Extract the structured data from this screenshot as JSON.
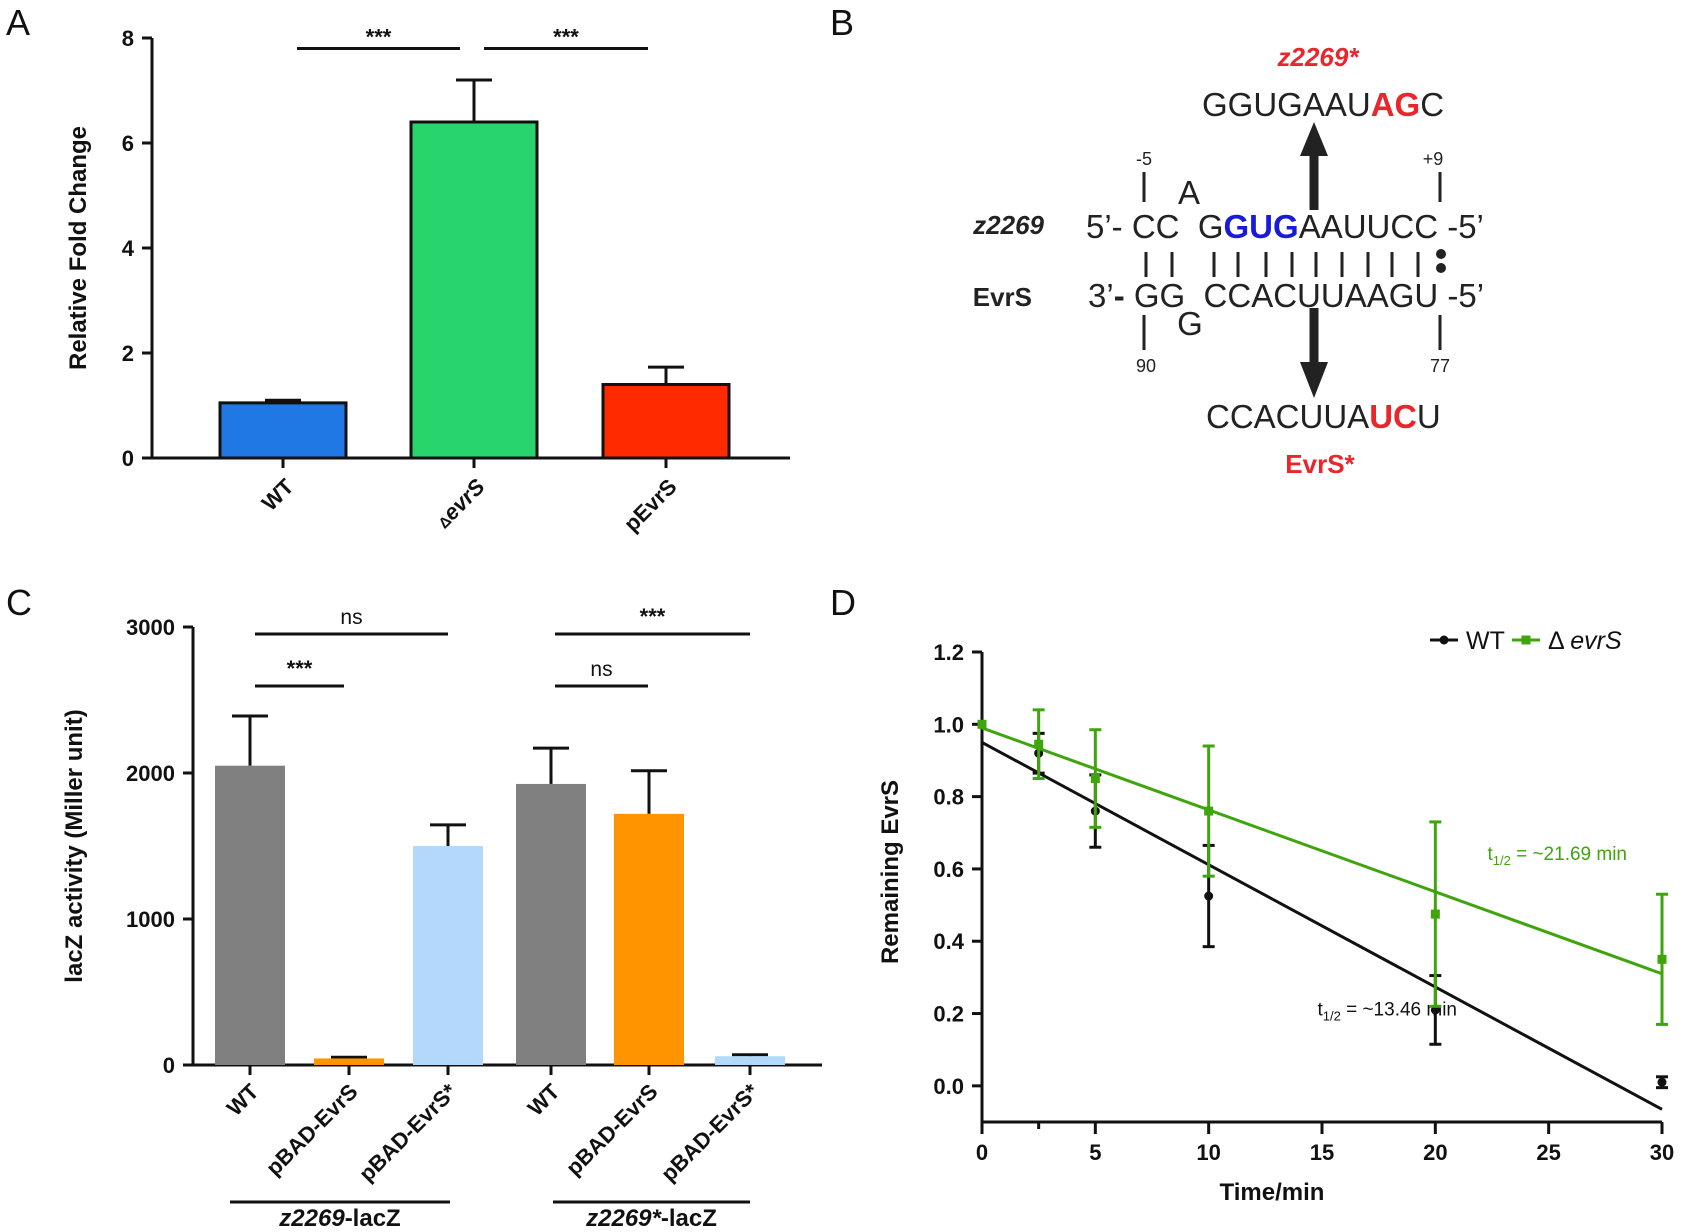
{
  "chart_data": [
    {
      "panel": "A",
      "type": "bar",
      "ylabel": "Relative Fold Change",
      "xlabel": "",
      "ylim": [
        0,
        8
      ],
      "yticks": [
        "0",
        "2",
        "4",
        "6",
        "8"
      ],
      "categories": [
        {
          "prefix": "",
          "label": "WT"
        },
        {
          "prefix": "Δ",
          "label": "evrS"
        },
        {
          "prefix": "",
          "label": "pEvrS"
        }
      ],
      "values": [
        1.05,
        6.4,
        1.4
      ],
      "errors": [
        0.05,
        0.8,
        0.33
      ],
      "colors": [
        "#1f78e4",
        "#27d56c",
        "#ff2a00"
      ],
      "comparisons": [
        {
          "from": 0,
          "to": 1,
          "label": "***",
          "y": 7.8
        },
        {
          "from": 1,
          "to": 2,
          "label": "***",
          "y": 7.8
        }
      ]
    },
    {
      "panel": "B",
      "type": "diagram",
      "mutant_top_label": "z2269*",
      "mutant_top_seq": [
        {
          "t": "GGUGAAU",
          "c": "#222222"
        },
        {
          "t": "AG",
          "c": "#e8262c",
          "b": true
        },
        {
          "t": "C",
          "c": "#222222"
        }
      ],
      "pos_left_top": "-5",
      "pos_right_top": "+9",
      "bulge_top": "A",
      "bulge_bottom": "G",
      "row1_label": "z2269",
      "row1_seq": [
        {
          "t": "5’- CC  G",
          "c": "#222222"
        },
        {
          "t": "GUG",
          "c": "#1a1adb",
          "b": true
        },
        {
          "t": "AAUUCC -5’",
          "c": "#222222"
        }
      ],
      "row2_label": "EvrS",
      "row2_seq": [
        {
          "t": "3’",
          "c": "#222222"
        },
        {
          "t": "-",
          "c": "#222222",
          "b": true
        },
        {
          "t": " GG  CCACUUAAGU -5’",
          "c": "#222222"
        }
      ],
      "pos_left_bottom": "90",
      "pos_right_bottom": "77",
      "mutant_bottom_seq": [
        {
          "t": "CCACUUA",
          "c": "#222222"
        },
        {
          "t": "UC",
          "c": "#e8262c",
          "b": true
        },
        {
          "t": "U",
          "c": "#222222"
        }
      ],
      "mutant_bottom_label": "EvrS*"
    },
    {
      "panel": "C",
      "type": "bar",
      "ylabel": "lacZ activity (Miller unit)",
      "ylim": [
        0,
        3000
      ],
      "yticks": [
        "0",
        "1000",
        "2000",
        "3000"
      ],
      "categories": [
        "WT",
        "pBAD-EvrS",
        "pBAD-EvrS*",
        "WT",
        "pBAD-EvrS",
        "pBAD-EvrS*"
      ],
      "values": [
        2050,
        45,
        1500,
        1925,
        1720,
        60
      ],
      "errors": [
        340,
        8,
        145,
        245,
        295,
        10
      ],
      "colors": [
        "#808080",
        "#ff9300",
        "#b4d8fc",
        "#808080",
        "#ff9300",
        "#b4d8fc"
      ],
      "groups": [
        {
          "label_italic": "z2269",
          "label_rest": "-lacZ"
        },
        {
          "label_italic": "z2269*",
          "label_rest": "-lacZ"
        }
      ],
      "comparisons": [
        {
          "from": 0,
          "to": 2,
          "label": "ns",
          "y": 2950
        },
        {
          "from": 0,
          "to": 1,
          "label": "***",
          "y": 2610
        },
        {
          "from": 3,
          "to": 5,
          "label": "***",
          "y": 2950
        },
        {
          "from": 3,
          "to": 4,
          "label": "ns",
          "y": 2610
        }
      ]
    },
    {
      "panel": "D",
      "type": "scatter",
      "xlabel": "Time/min",
      "ylabel": "Remaining EvrS",
      "xlim": [
        0,
        30
      ],
      "ylim": [
        -0.1,
        1.2
      ],
      "xticks": [
        0,
        5,
        10,
        15,
        20,
        25,
        30
      ],
      "yticks": [
        "0.0",
        "0.2",
        "0.4",
        "0.6",
        "0.8",
        "1.0",
        "1.2"
      ],
      "legend_position": "top-right",
      "series": [
        {
          "name": "WT",
          "name_prefix": "",
          "color": "#111111",
          "marker": "circle",
          "x": [
            0,
            2.5,
            5,
            10,
            20,
            30
          ],
          "y": [
            1.0,
            0.92,
            0.76,
            0.525,
            0.21,
            0.01
          ],
          "err": [
            0.0,
            0.055,
            0.1,
            0.14,
            0.095,
            0.015
          ],
          "fit": [
            [
              0,
              0.95
            ],
            [
              30,
              -0.065
            ]
          ],
          "annotation": {
            "sub": "1/2",
            "text": " = ~13.46 min",
            "x": 14.8,
            "y": 0.195
          }
        },
        {
          "name": "evrS",
          "name_prefix": "Δ",
          "color": "#3fa40d",
          "marker": "square",
          "x": [
            0,
            2.5,
            5,
            10,
            20,
            30
          ],
          "y": [
            1.0,
            0.945,
            0.85,
            0.76,
            0.475,
            0.35
          ],
          "err": [
            0.0,
            0.095,
            0.135,
            0.18,
            0.255,
            0.18
          ],
          "fit": [
            [
              0,
              0.99
            ],
            [
              30,
              0.31
            ]
          ],
          "annotation": {
            "sub": "1/2",
            "text": " = ~21.69 min",
            "x": 22.3,
            "y": 0.625
          }
        }
      ]
    }
  ],
  "panel_letters": [
    "A",
    "B",
    "C",
    "D"
  ]
}
